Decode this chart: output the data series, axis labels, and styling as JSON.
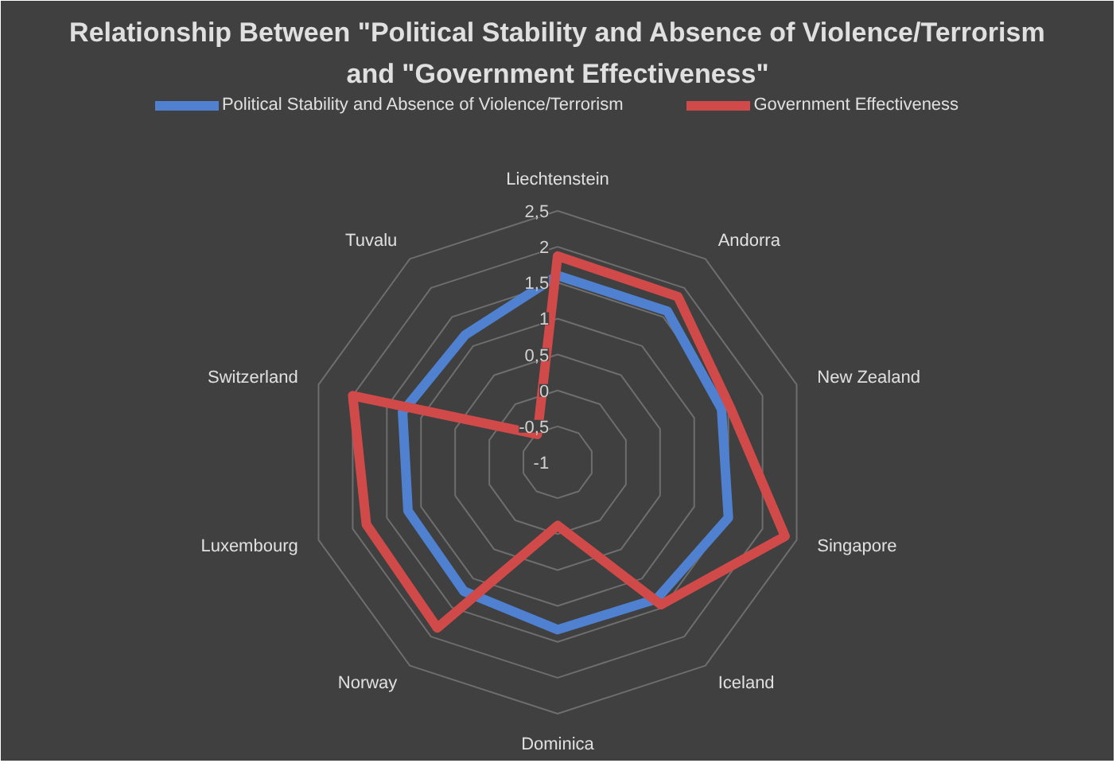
{
  "chart_data": {
    "type": "radar",
    "title": "Relationship Between \"Political Stability and Absence of Violence/Terrorism\nand \"Government Effectiveness\"",
    "categories": [
      "Liechtenstein",
      "Andorra",
      "New Zealand",
      "Singapore",
      "Iceland",
      "Dominica",
      "Norway",
      "Luxembourg",
      "Switzerland",
      "Tuvalu"
    ],
    "series": [
      {
        "name": "Political Stability and Absence of Violence/Terrorism",
        "color": "#4f81d0",
        "values": [
          1.6,
          1.6,
          1.4,
          1.5,
          1.35,
          1.33,
          1.22,
          1.19,
          1.27,
          1.19
        ]
      },
      {
        "name": "Government Effectiveness",
        "color": "#d04a4a",
        "values": [
          1.87,
          1.85,
          1.52,
          2.33,
          1.45,
          -0.12,
          1.85,
          1.8,
          2.0,
          -0.52
        ]
      }
    ],
    "ylim": [
      -1,
      2.5
    ],
    "yticks": [
      -1,
      {
        "value": -0.5,
        "label": "-0,5"
      },
      0,
      {
        "value": 0.5,
        "label": "0,5"
      },
      1,
      {
        "value": 1.5,
        "label": "1,5"
      },
      2,
      {
        "value": 2.5,
        "label": "2,5"
      }
    ],
    "grid": true,
    "legend": "top"
  }
}
